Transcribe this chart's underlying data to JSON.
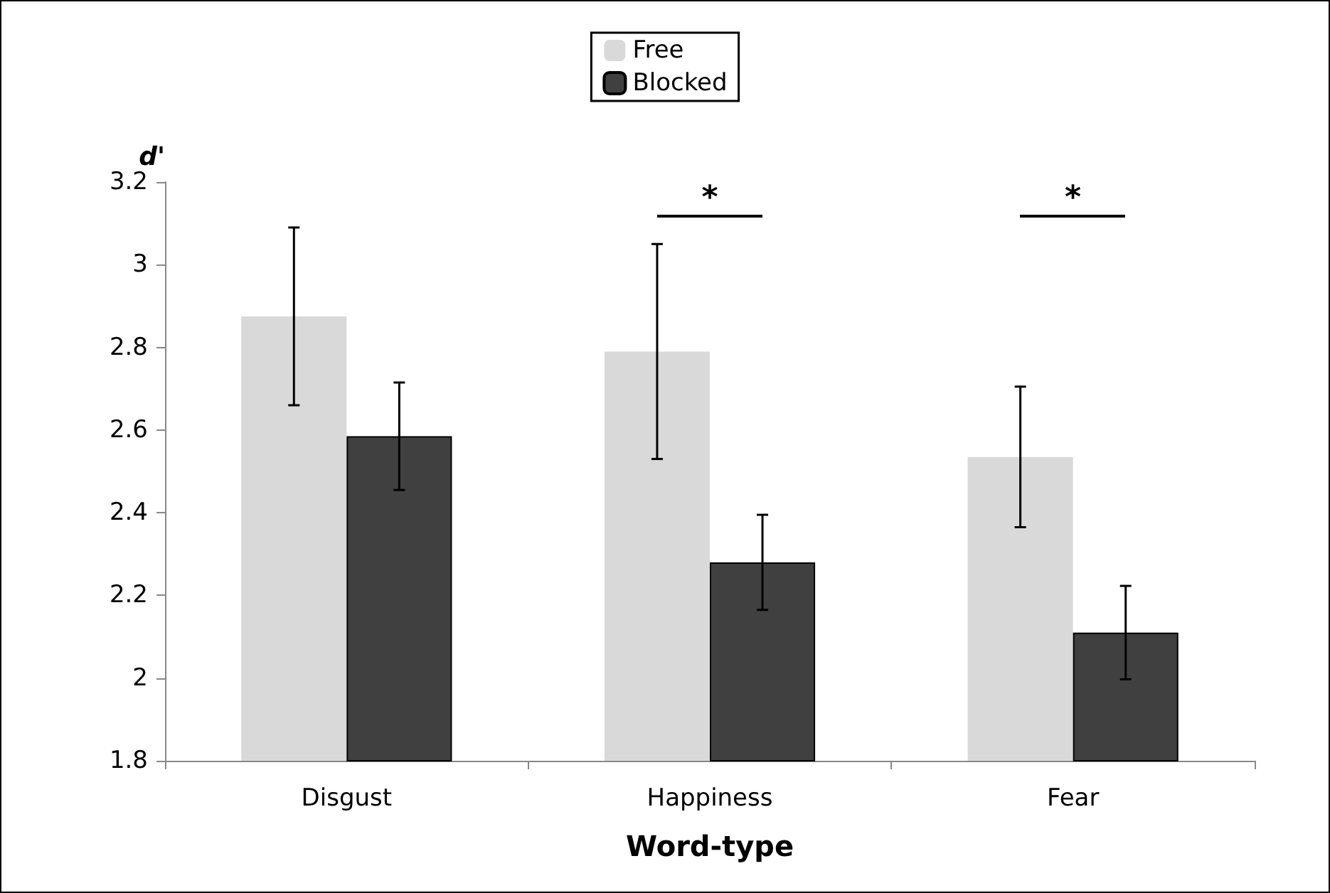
{
  "chart_data": {
    "type": "bar",
    "xlabel": "Word-type",
    "ylabel": "d'",
    "categories": [
      "Disgust",
      "Happiness",
      "Fear"
    ],
    "series": [
      {
        "name": "Free",
        "color": "#d9d9d9",
        "values": [
          2.875,
          2.79,
          2.535
        ],
        "errors": [
          0.215,
          0.26,
          0.17
        ]
      },
      {
        "name": "Blocked",
        "color": "#404040",
        "values": [
          2.585,
          2.28,
          2.11
        ],
        "errors": [
          0.13,
          0.115,
          0.113
        ]
      }
    ],
    "ylim": [
      1.8,
      3.2
    ],
    "yticks": [
      1.8,
      2,
      2.2,
      2.4,
      2.6,
      2.8,
      3,
      3.2
    ],
    "annotations": [
      "*",
      "*"
    ],
    "grid": false,
    "legend": "top"
  }
}
